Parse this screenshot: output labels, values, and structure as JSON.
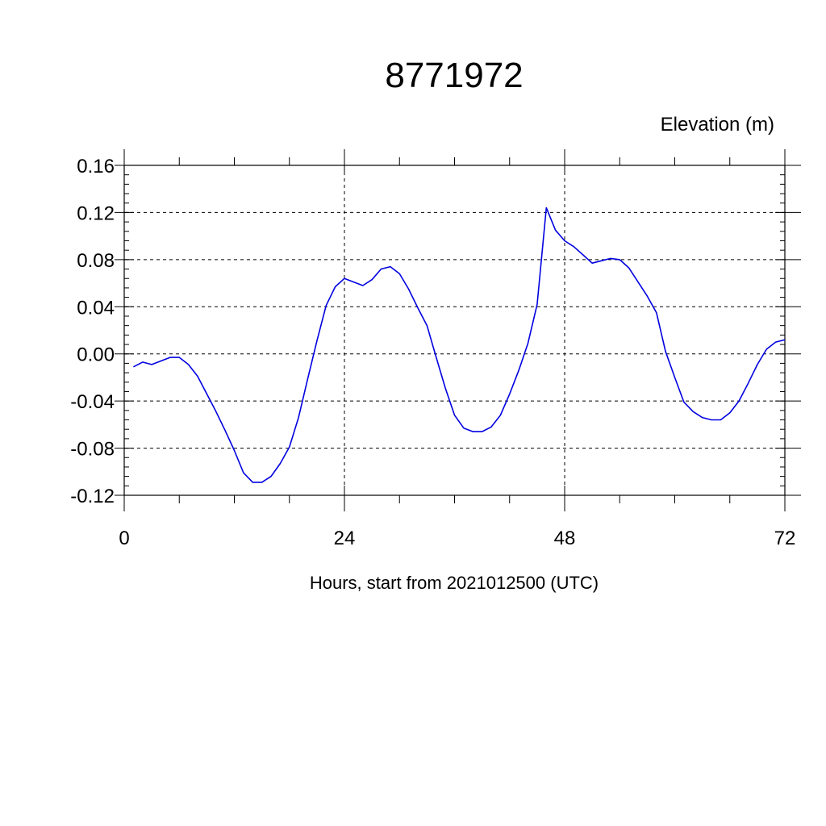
{
  "chart_data": {
    "type": "line",
    "title": "8771972",
    "units_label": "Elevation (m)",
    "xlabel": "Hours, start from 2021012500 (UTC)",
    "xlim": [
      0,
      72
    ],
    "ylim": [
      -0.12,
      0.16
    ],
    "x_ticks": [
      0,
      24,
      48,
      72
    ],
    "x_tick_labels": [
      "0",
      "24",
      "48",
      "72"
    ],
    "y_ticks": [
      -0.12,
      -0.08,
      -0.04,
      0.0,
      0.04,
      0.08,
      0.12,
      0.16
    ],
    "y_tick_labels": [
      "-0.12",
      "-0.08",
      "-0.04",
      "0.00",
      "0.04",
      "0.08",
      "0.12",
      "0.16"
    ],
    "grid": true,
    "line_color": "#0000e0",
    "series": [
      {
        "x": [
          1,
          2,
          3,
          4,
          5,
          6,
          7,
          8,
          9,
          10,
          11,
          12,
          13,
          14,
          15,
          16,
          17,
          18,
          19,
          20,
          21,
          22,
          23,
          24,
          25,
          26,
          27,
          28,
          29,
          30,
          31,
          32,
          33,
          34,
          35,
          36,
          37,
          38,
          39,
          40,
          41,
          42,
          43,
          44,
          45,
          46,
          47,
          48,
          49,
          50,
          51,
          52,
          53,
          54,
          55,
          56,
          57,
          58,
          59,
          60,
          61,
          62,
          63,
          64,
          65,
          66,
          67,
          68,
          69,
          70,
          71,
          72
        ],
        "values": [
          -0.011,
          -0.007,
          -0.009,
          -0.006,
          -0.003,
          -0.003,
          -0.009,
          -0.019,
          -0.034,
          -0.049,
          -0.065,
          -0.082,
          -0.101,
          -0.109,
          -0.109,
          -0.104,
          -0.093,
          -0.079,
          -0.054,
          -0.021,
          0.011,
          0.041,
          0.057,
          0.064,
          0.061,
          0.058,
          0.063,
          0.072,
          0.074,
          0.068,
          0.055,
          0.039,
          0.024,
          -0.003,
          -0.029,
          -0.052,
          -0.063,
          -0.066,
          -0.066,
          -0.062,
          -0.052,
          -0.034,
          -0.014,
          0.009,
          0.042,
          0.124,
          0.105,
          0.096,
          0.091,
          0.084,
          0.077,
          0.079,
          0.081,
          0.08,
          0.073,
          0.061,
          0.049,
          0.035,
          0.002,
          -0.02,
          -0.041,
          -0.049,
          -0.054,
          -0.056,
          -0.056,
          -0.05,
          -0.04,
          -0.025,
          -0.009,
          0.004,
          0.01,
          0.012
        ]
      }
    ]
  }
}
